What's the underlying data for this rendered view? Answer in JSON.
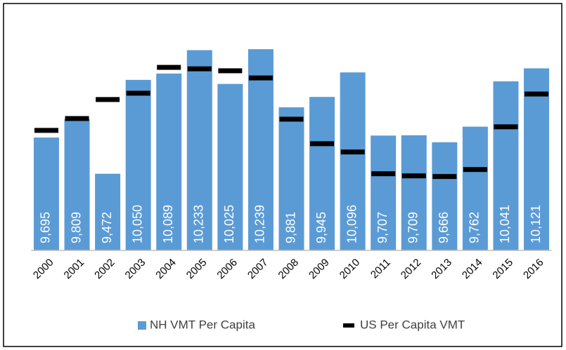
{
  "chart_data": {
    "type": "bar",
    "categories": [
      "2000",
      "2001",
      "2002",
      "2003",
      "2004",
      "2005",
      "2006",
      "2007",
      "2008",
      "2009",
      "2010",
      "2011",
      "2012",
      "2013",
      "2014",
      "2015",
      "2016"
    ],
    "series": [
      {
        "name": "NH VMT Per Capita",
        "color": "#5b9bd5",
        "values": [
          9695,
          9809,
          9472,
          10050,
          10089,
          10233,
          10025,
          10239,
          9881,
          9945,
          10096,
          9707,
          9709,
          9666,
          9762,
          10041,
          10121
        ],
        "value_labels": [
          "9,695",
          "9,809",
          "9,472",
          "10,050",
          "10,089",
          "10,233",
          "10,025",
          "10,239",
          "9,881",
          "9,945",
          "10,096",
          "9,707",
          "9,709",
          "9,666",
          "9,762",
          "10,041",
          "10,121"
        ]
      },
      {
        "name": "US Per Capita VMT",
        "color": "#000000",
        "marker": "dash",
        "values": [
          9739,
          9812,
          9929,
          9968,
          10127,
          10118,
          10106,
          10062,
          9808,
          9657,
          9606,
          9472,
          9459,
          9455,
          9498,
          9761,
          9963
        ]
      }
    ],
    "ylim": [
      9000,
      10300
    ],
    "legend": "bottom"
  }
}
